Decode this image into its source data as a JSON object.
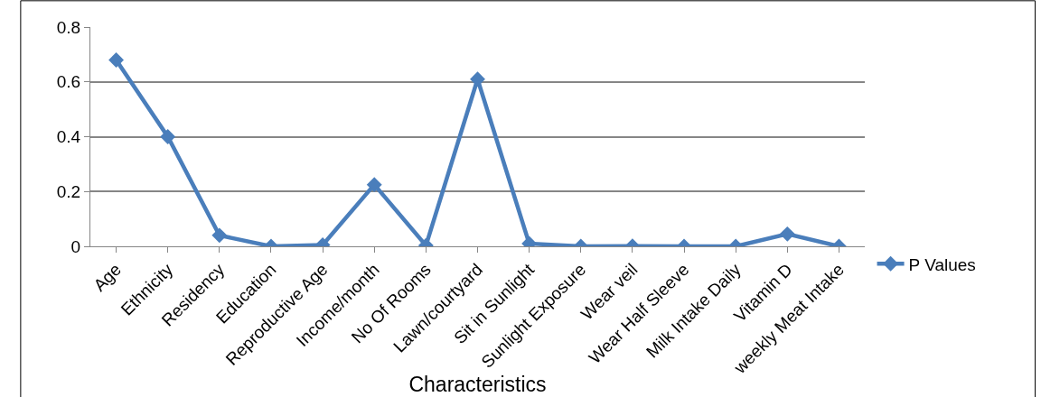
{
  "chart_data": {
    "type": "line",
    "xlabel": "Characteristics",
    "categories": [
      "Age",
      "Ethnicity",
      "Residency",
      "Education",
      "Reproductive Age",
      "Income/month",
      "No Of Rooms",
      "Lawn/courtyard",
      "Sit in Sunlight",
      "Sunlight Exposure",
      "Wear veil",
      "Wear Half Sleeve",
      "Milk Intake Daily",
      "Vitamin D",
      "weekly Meat Intake"
    ],
    "series": [
      {
        "name": "P Values",
        "color": "#4a7ebb",
        "values": [
          0.68,
          0.4,
          0.04,
          0.0,
          0.005,
          0.225,
          0.003,
          0.61,
          0.01,
          0.0,
          0.001,
          0.0,
          0.0,
          0.045,
          0.0
        ]
      }
    ],
    "ylim": [
      0,
      0.8
    ],
    "yticks": [
      {
        "value": 0,
        "label": "0"
      },
      {
        "value": 0.2,
        "label": "0.2"
      },
      {
        "value": 0.4,
        "label": "0.4"
      },
      {
        "value": 0.6,
        "label": "0.6"
      },
      {
        "value": 0.8,
        "label": "0.8"
      }
    ],
    "grid": "y",
    "legend": "right",
    "marker": "diamond",
    "line_style": "solid"
  }
}
